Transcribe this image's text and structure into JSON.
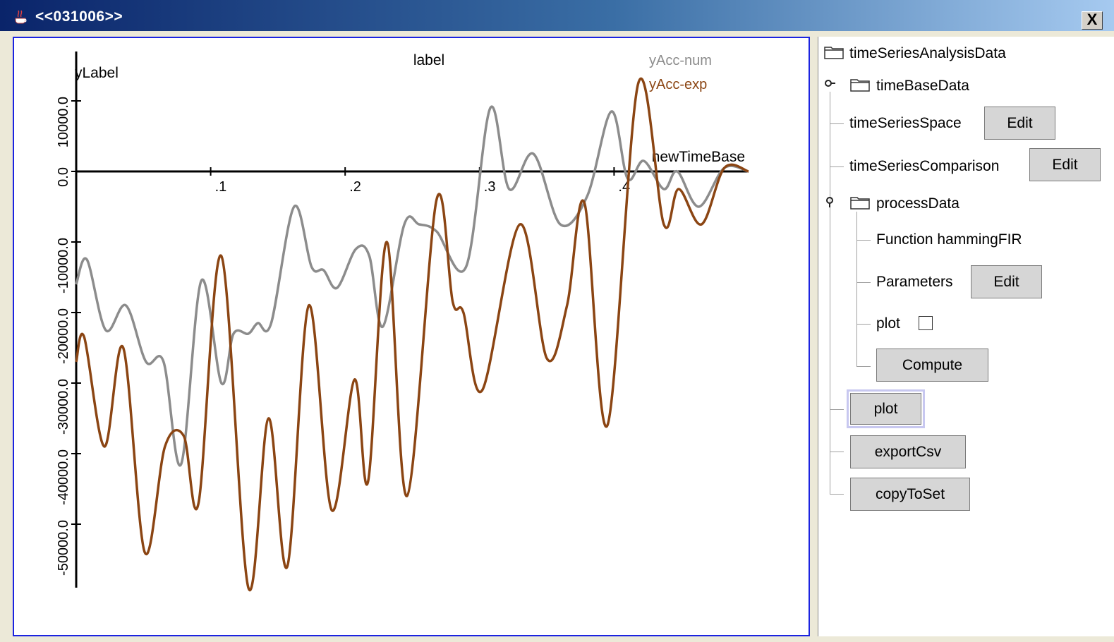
{
  "window": {
    "title": "<<031006>>",
    "close_label": "X"
  },
  "plot": {
    "title": "label",
    "ylabel": "yLabel",
    "xlabel": "newTimeBase",
    "ticks_x": [
      ".1",
      ".2",
      ".3",
      ".4"
    ],
    "ticks_y": [
      "10000.0",
      "0.0",
      "-10000.0",
      "-20000.0",
      "-30000.0",
      "-40000.0",
      "-50000.0"
    ],
    "legend": [
      {
        "name": "yAcc-num",
        "color": "#8c8c8c"
      },
      {
        "name": "yAcc-exp",
        "color": "#8b4513"
      }
    ]
  },
  "chart_data": {
    "type": "line",
    "title": "label",
    "xlabel": "newTimeBase",
    "ylabel": "yLabel",
    "xlim": [
      0,
      0.5
    ],
    "ylim": [
      -59000,
      17000
    ],
    "legend_position": "top-right",
    "series": [
      {
        "name": "yAcc-num",
        "color": "#8c8c8c",
        "points": [
          [
            0,
            -16000
          ],
          [
            0.008,
            -12500
          ],
          [
            0.022,
            -22500
          ],
          [
            0.037,
            -19000
          ],
          [
            0.052,
            -27000
          ],
          [
            0.065,
            -27000
          ],
          [
            0.078,
            -41500
          ],
          [
            0.093,
            -15500
          ],
          [
            0.108,
            -30000
          ],
          [
            0.117,
            -23000
          ],
          [
            0.128,
            -23000
          ],
          [
            0.135,
            -21500
          ],
          [
            0.145,
            -21500
          ],
          [
            0.162,
            -5000
          ],
          [
            0.175,
            -13500
          ],
          [
            0.184,
            -14000
          ],
          [
            0.194,
            -16500
          ],
          [
            0.208,
            -11000
          ],
          [
            0.218,
            -12000
          ],
          [
            0.228,
            -22000
          ],
          [
            0.244,
            -7500
          ],
          [
            0.255,
            -7500
          ],
          [
            0.268,
            -8500
          ],
          [
            0.29,
            -13500
          ],
          [
            0.308,
            9000
          ],
          [
            0.322,
            -2500
          ],
          [
            0.34,
            2500
          ],
          [
            0.36,
            -7500
          ],
          [
            0.38,
            -3500
          ],
          [
            0.398,
            8500
          ],
          [
            0.41,
            -1000
          ],
          [
            0.422,
            1500
          ],
          [
            0.437,
            -2500
          ],
          [
            0.447,
            0
          ],
          [
            0.463,
            -5000
          ],
          [
            0.482,
            500
          ],
          [
            0.5,
            0
          ]
        ]
      },
      {
        "name": "yAcc-exp",
        "color": "#8b4513",
        "points": [
          [
            0,
            -27000
          ],
          [
            0.006,
            -23500
          ],
          [
            0.021,
            -39000
          ],
          [
            0.035,
            -25000
          ],
          [
            0.051,
            -54000
          ],
          [
            0.066,
            -39000
          ],
          [
            0.08,
            -37500
          ],
          [
            0.091,
            -47000
          ],
          [
            0.108,
            -12000
          ],
          [
            0.128,
            -59000
          ],
          [
            0.143,
            -35000
          ],
          [
            0.157,
            -56000
          ],
          [
            0.173,
            -19000
          ],
          [
            0.19,
            -48000
          ],
          [
            0.207,
            -29500
          ],
          [
            0.217,
            -44000
          ],
          [
            0.231,
            -10000
          ],
          [
            0.246,
            -46000
          ],
          [
            0.268,
            -4000
          ],
          [
            0.28,
            -18500
          ],
          [
            0.288,
            -20000
          ],
          [
            0.302,
            -31000
          ],
          [
            0.33,
            -7500
          ],
          [
            0.35,
            -26500
          ],
          [
            0.365,
            -19000
          ],
          [
            0.378,
            -4500
          ],
          [
            0.395,
            -36000
          ],
          [
            0.418,
            12500
          ],
          [
            0.437,
            -7500
          ],
          [
            0.448,
            -2500
          ],
          [
            0.465,
            -7500
          ],
          [
            0.482,
            500
          ],
          [
            0.5,
            0
          ]
        ]
      }
    ]
  },
  "tree": {
    "root": "timeSeriesAnalysisData",
    "timeBaseData": "timeBaseData",
    "timeSeriesSpace": "timeSeriesSpace",
    "timeSeriesSpace_btn": "Edit",
    "timeSeriesComparison": "timeSeriesComparison",
    "timeSeriesComparison_btn": "Edit",
    "processData": "processData",
    "function_label": "Function  hammingFIR",
    "parameters": "Parameters",
    "parameters_btn": "Edit",
    "plot_label": "plot",
    "compute_btn": "Compute",
    "plot_btn": "plot",
    "exportCsv_btn": "exportCsv",
    "copyToSet_btn": "copyToSet"
  }
}
